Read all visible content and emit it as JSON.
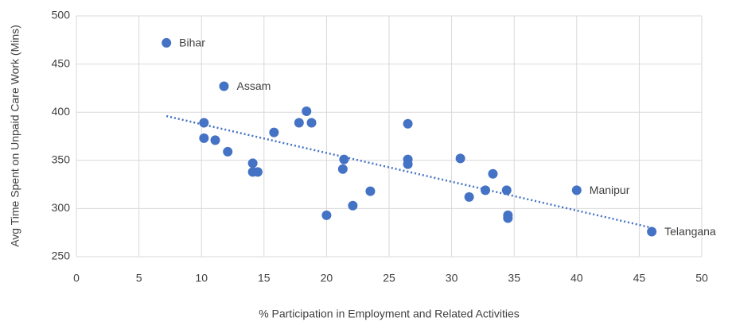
{
  "chart_data": {
    "type": "scatter",
    "x_label": "% Participation in Employment and Related Activities",
    "y_label": "Avg Time Spent on Unpaid Care Work (Mins)",
    "color": "#4472c4",
    "x": [
      7.2,
      11.8,
      10.2,
      10.2,
      11.1,
      12.1,
      14.1,
      14.1,
      14.5,
      15.8,
      17.8,
      18.4,
      18.8,
      20.0,
      21.4,
      21.3,
      22.1,
      23.5,
      26.5,
      26.5,
      26.5,
      30.7,
      31.4,
      32.7,
      33.3,
      34.4,
      34.5,
      34.5,
      40.0,
      46.0
    ],
    "y": [
      472,
      427,
      389,
      373,
      371,
      359,
      347,
      338,
      338,
      379,
      389,
      401,
      389,
      293,
      351,
      341,
      303,
      318,
      388,
      351,
      346,
      352,
      312,
      319,
      336,
      319,
      293,
      290,
      319,
      276
    ],
    "labels": [
      "Bihar",
      "Assam",
      null,
      null,
      null,
      null,
      null,
      null,
      null,
      null,
      null,
      null,
      null,
      null,
      null,
      null,
      null,
      null,
      null,
      null,
      null,
      null,
      null,
      null,
      null,
      null,
      null,
      null,
      "Manipur",
      "Telangana"
    ],
    "trendline": {
      "x": [
        7.2,
        46
      ],
      "y": [
        396,
        280
      ]
    },
    "xlim": [
      0,
      50
    ],
    "xticks": [
      0,
      5,
      10,
      15,
      20,
      25,
      30,
      35,
      40,
      45,
      50
    ],
    "ylim": [
      250,
      500
    ],
    "yticks": [
      250,
      300,
      350,
      400,
      450,
      500
    ],
    "grid": true
  }
}
